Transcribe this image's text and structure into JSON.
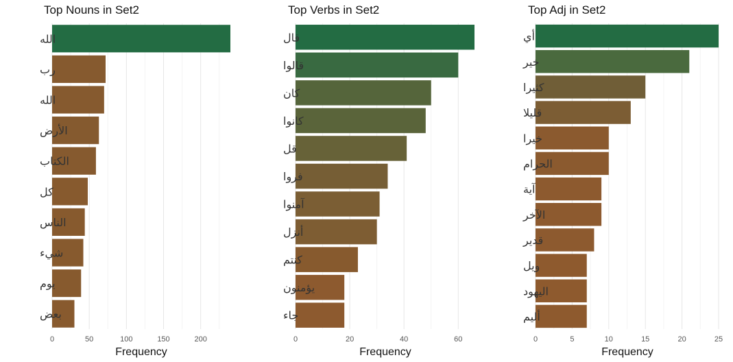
{
  "chart_data": [
    {
      "type": "bar",
      "orientation": "horizontal",
      "title": "Top Nouns in  Set2",
      "xlabel": "Frequency",
      "ylabel": "",
      "xlim": [
        0,
        240
      ],
      "xticks": [
        0,
        50,
        100,
        150,
        200
      ],
      "categories": [
        "الله",
        "رب",
        "الله",
        "الأرض",
        "الكتاب",
        "كل",
        "الناس",
        "شيء",
        "يوم",
        "بعض"
      ],
      "values": [
        240,
        72,
        70,
        63,
        59,
        48,
        44,
        42,
        39,
        30
      ],
      "colors": [
        "#236c43",
        "#865a2f",
        "#865a2f",
        "#855a2f",
        "#865a2f",
        "#875a2e",
        "#875a2e",
        "#875a2e",
        "#875a2e",
        "#885a2e"
      ],
      "grid": true,
      "legend": "none"
    },
    {
      "type": "bar",
      "orientation": "horizontal",
      "title": "Top Verbs in  Set2",
      "xlabel": "Frequency",
      "ylabel": "",
      "xlim": [
        0,
        66
      ],
      "xticks": [
        0,
        20,
        40,
        60
      ],
      "categories": [
        "قال",
        "قالوا",
        "كان",
        "كانوا",
        "قل",
        "فروا",
        "آمنوا",
        "أنزل",
        "كنتم",
        "يؤمنون",
        "جاء"
      ],
      "values": [
        66,
        60,
        50,
        48,
        41,
        34,
        31,
        30,
        23,
        18,
        18
      ],
      "colors": [
        "#236c43",
        "#396a41",
        "#55653b",
        "#5a643a",
        "#676238",
        "#765e35",
        "#7b5e34",
        "#7e5d33",
        "#875a2e",
        "#8d5a2f",
        "#8d5a2f"
      ],
      "grid": true,
      "legend": "none"
    },
    {
      "type": "bar",
      "orientation": "horizontal",
      "title": "Top Adj in  Set2",
      "xlabel": "Frequency",
      "ylabel": "",
      "xlim": [
        0,
        25
      ],
      "xticks": [
        0,
        5,
        10,
        15,
        20,
        25
      ],
      "categories": [
        "أي",
        "خير",
        "كثيرا",
        "قليلا",
        "خيرا",
        "الحرام",
        "آية",
        "الآخر",
        "قدير",
        "ويل",
        "اليهود",
        "أليم"
      ],
      "values": [
        25,
        21,
        15,
        13,
        10,
        10,
        9,
        9,
        8,
        7,
        7,
        7
      ],
      "colors": [
        "#236c43",
        "#4a6a3e",
        "#705e37",
        "#7c5d34",
        "#8b5a2f",
        "#8b5a2f",
        "#8d5a2f",
        "#8d5a2f",
        "#8d5a2f",
        "#8e5a2e",
        "#8e5a2e",
        "#8e5a2e"
      ],
      "grid": true,
      "legend": "none"
    }
  ]
}
